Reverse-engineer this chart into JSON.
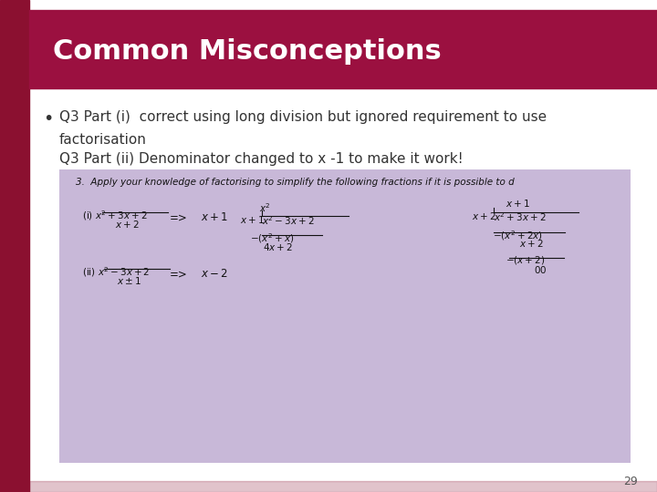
{
  "title": "Common Misconceptions",
  "title_bg_color": "#9B1040",
  "title_text_color": "#FFFFFF",
  "slide_bg_color": "#FFFFFF",
  "left_bar_color": "#8B1030",
  "bullet_text_line1": "Q3 Part (i)  correct using long division but ignored requirement to use",
  "bullet_text_line2": "factorisation",
  "bullet_text_line3": "Q3 Part (ii) Denominator changed to x -1 to make it work!",
  "bullet_text_color": "#333333",
  "image_box_color": "#C8B8D8",
  "page_number": "29",
  "font_size_title": 22,
  "font_size_bullet": 11
}
